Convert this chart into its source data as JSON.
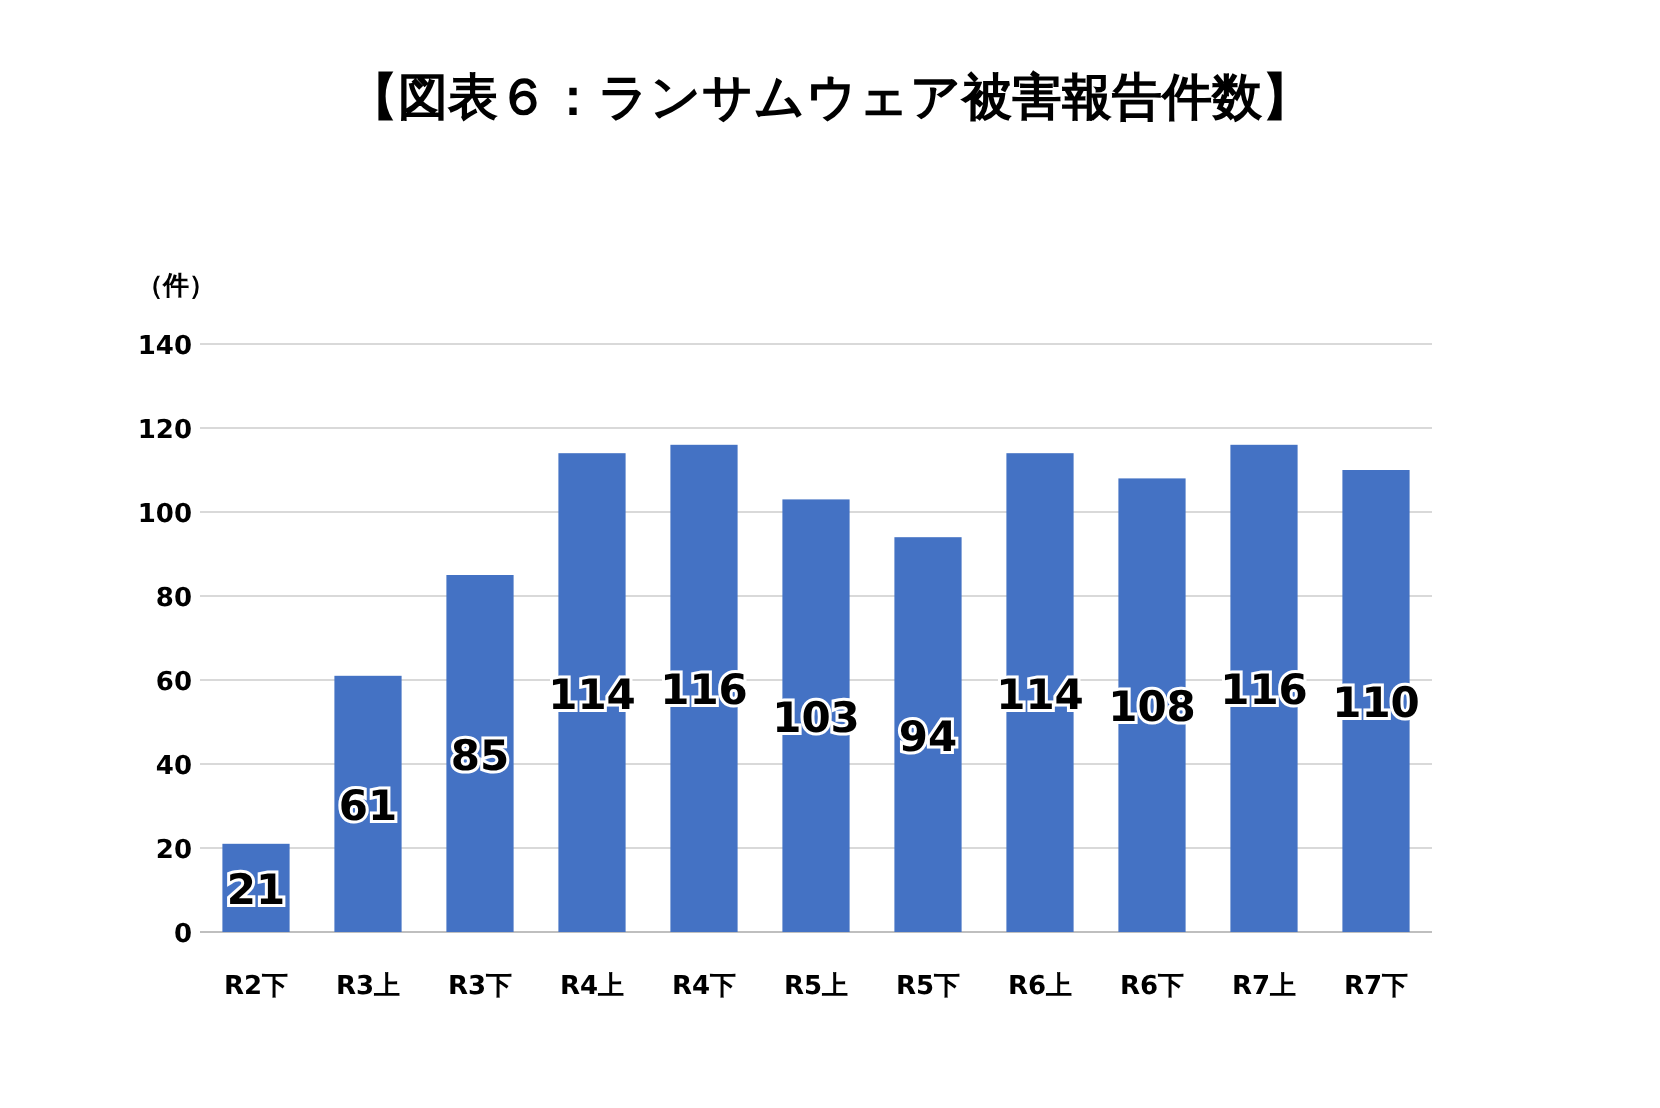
{
  "chart_data": {
    "type": "bar",
    "title": "【図表６：ランサムウェア被害報告件数】",
    "ylabel": "（件）",
    "categories": [
      "R2下",
      "R3上",
      "R3下",
      "R4上",
      "R4下",
      "R5上",
      "R5下",
      "R6上",
      "R6下",
      "R7上",
      "R7下"
    ],
    "values": [
      21,
      61,
      85,
      114,
      116,
      103,
      94,
      114,
      108,
      116,
      110
    ],
    "color": "#4472c4",
    "ylim": [
      0,
      140
    ],
    "yticks": [
      0,
      20,
      40,
      60,
      80,
      100,
      120,
      140
    ],
    "grid": "y",
    "data_labels": true
  }
}
